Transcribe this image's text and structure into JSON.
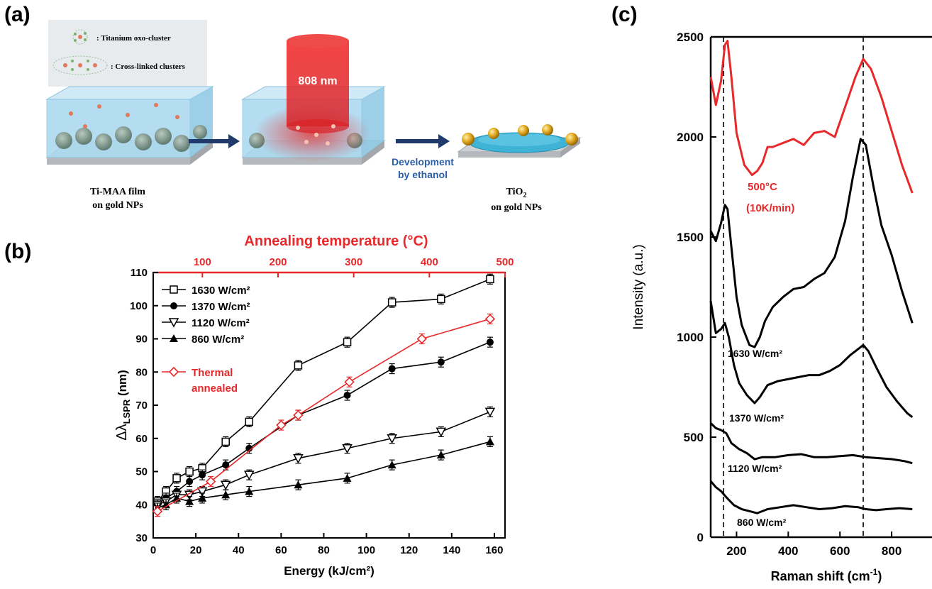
{
  "panels": {
    "a": {
      "letter": "(a)"
    },
    "b": {
      "letter": "(b)"
    },
    "c": {
      "letter": "(c)"
    }
  },
  "schematic": {
    "legend_cluster": ": Titanium oxo-cluster",
    "legend_crosslinked": ": Cross-linked clusters",
    "laser_label": "808 nm",
    "development_line1": "Development",
    "development_line2": "by ethanol",
    "film_line1": "Ti-MAA film",
    "film_line2": "on gold NPs",
    "tio2_main": "TiO",
    "tio2_sub": "2",
    "tio2_line2": "on gold NPs",
    "colors": {
      "laser": "#e8292b",
      "film": "#a8d8ef",
      "arrow": "#1f3a6b",
      "gold": "#d9a21b",
      "development_text": "#2b5fa8"
    }
  },
  "chart_data": [
    {
      "type": "line",
      "xlabel": "Energy (kJ/cm²)",
      "ylabel_main": "Δλ",
      "ylabel_sub": "LSPR",
      "ylabel_unit": " (nm)",
      "top_xlabel": "Annealing temperature (°C)",
      "xlim": [
        0,
        165
      ],
      "ylim": [
        30,
        110
      ],
      "xticks": [
        "0",
        "20",
        "40",
        "60",
        "80",
        "100",
        "120",
        "140",
        "160"
      ],
      "yticks": [
        "30",
        "40",
        "50",
        "60",
        "70",
        "80",
        "90",
        "100",
        "110"
      ],
      "top_xlim": [
        35,
        500
      ],
      "top_xticks": [
        "100",
        "200",
        "300",
        "400",
        "500"
      ],
      "legend_placement": "top-left",
      "series": [
        {
          "name": "1630 W/cm²",
          "marker": "open-square",
          "color": "#000000",
          "x": [
            2,
            6,
            11,
            17,
            23,
            34,
            45,
            68,
            91,
            112,
            135,
            158
          ],
          "y": [
            41,
            44,
            48,
            50,
            51,
            59,
            65,
            82,
            89,
            101,
            102,
            108
          ]
        },
        {
          "name": "1370 W/cm²",
          "marker": "filled-circle",
          "color": "#000000",
          "x": [
            2,
            6,
            11,
            17,
            23,
            34,
            45,
            68,
            91,
            112,
            135,
            158
          ],
          "y": [
            40,
            42,
            44,
            47,
            49,
            52,
            57,
            67,
            73,
            81,
            83,
            89
          ]
        },
        {
          "name": "1120 W/cm²",
          "marker": "open-triangle-down",
          "color": "#000000",
          "x": [
            2,
            6,
            11,
            17,
            23,
            34,
            45,
            68,
            91,
            112,
            135,
            158
          ],
          "y": [
            40,
            41,
            43,
            43,
            44,
            46,
            49,
            54,
            57,
            60,
            62,
            68
          ]
        },
        {
          "name": "860 W/cm²",
          "marker": "filled-triangle-up",
          "color": "#000000",
          "x": [
            2,
            6,
            11,
            17,
            23,
            34,
            45,
            68,
            91,
            112,
            135,
            158
          ],
          "y": [
            39,
            40,
            42,
            41,
            42,
            43,
            44,
            46,
            48,
            52,
            55,
            59
          ]
        },
        {
          "name_line1": "Thermal",
          "name_line2": "annealed",
          "marker": "open-diamond",
          "color": "#e8292b",
          "x": [
            2,
            27,
            60,
            68,
            92,
            126,
            158
          ],
          "y": [
            38,
            47,
            64,
            67,
            77,
            90,
            96
          ]
        }
      ]
    },
    {
      "type": "line",
      "xlabel_main": "Raman shift (cm",
      "xlabel_sup": "-1",
      "xlabel_end": ")",
      "ylabel": "Intensity (a.u.)",
      "xlim": [
        100,
        1000
      ],
      "ylim": [
        0,
        2500
      ],
      "xticks": [
        "200",
        "400",
        "600",
        "800"
      ],
      "yticks": [
        "0",
        "500",
        "1000",
        "1500",
        "2000",
        "2500"
      ],
      "dashed_lines_x": [
        150,
        690
      ],
      "series": [
        {
          "name_line1": "500°C",
          "name_line2": "(10K/min)",
          "color": "#e8292b",
          "x": [
            100,
            120,
            140,
            155,
            165,
            180,
            200,
            230,
            260,
            280,
            300,
            320,
            340,
            380,
            420,
            460,
            500,
            540,
            580,
            620,
            660,
            690,
            720,
            760,
            800,
            840,
            880
          ],
          "y": [
            2300,
            2160,
            2280,
            2460,
            2480,
            2300,
            2020,
            1860,
            1810,
            1830,
            1870,
            1950,
            1950,
            1970,
            1990,
            1960,
            2020,
            2030,
            2000,
            2150,
            2300,
            2390,
            2340,
            2200,
            2030,
            1860,
            1720
          ]
        },
        {
          "name": "1630 W/cm²",
          "color": "#000000",
          "x": [
            100,
            120,
            140,
            155,
            165,
            180,
            200,
            220,
            250,
            270,
            290,
            310,
            340,
            380,
            420,
            460,
            500,
            540,
            580,
            620,
            650,
            680,
            700,
            730,
            760,
            800,
            840,
            880
          ],
          "y": [
            1530,
            1480,
            1570,
            1660,
            1640,
            1450,
            1200,
            1060,
            960,
            950,
            1000,
            1080,
            1150,
            1200,
            1240,
            1250,
            1290,
            1320,
            1400,
            1580,
            1800,
            1990,
            1960,
            1750,
            1560,
            1410,
            1230,
            1070
          ]
        },
        {
          "name": "1370 W/cm²",
          "color": "#000000",
          "x": [
            100,
            120,
            140,
            155,
            170,
            190,
            210,
            240,
            270,
            290,
            320,
            360,
            400,
            440,
            480,
            520,
            560,
            600,
            640,
            670,
            690,
            710,
            740,
            780,
            820,
            860,
            880
          ],
          "y": [
            1180,
            1020,
            1040,
            1070,
            1000,
            860,
            770,
            710,
            670,
            700,
            760,
            780,
            790,
            800,
            810,
            810,
            830,
            860,
            910,
            940,
            960,
            930,
            850,
            750,
            680,
            620,
            600
          ]
        },
        {
          "name": "1120 W/cm²",
          "color": "#000000",
          "x": [
            100,
            120,
            140,
            160,
            180,
            210,
            240,
            270,
            300,
            350,
            400,
            450,
            500,
            550,
            600,
            650,
            700,
            750,
            800,
            850,
            880
          ],
          "y": [
            570,
            545,
            535,
            520,
            470,
            440,
            420,
            390,
            400,
            400,
            410,
            415,
            400,
            400,
            405,
            410,
            400,
            395,
            390,
            380,
            370
          ]
        },
        {
          "name": "860 W/cm²",
          "color": "#000000",
          "x": [
            100,
            120,
            140,
            160,
            190,
            220,
            250,
            280,
            320,
            370,
            420,
            470,
            520,
            570,
            620,
            670,
            700,
            740,
            780,
            830,
            880
          ],
          "y": [
            280,
            250,
            230,
            200,
            160,
            140,
            130,
            120,
            140,
            150,
            160,
            150,
            140,
            145,
            155,
            150,
            140,
            135,
            140,
            145,
            140
          ]
        }
      ]
    }
  ]
}
